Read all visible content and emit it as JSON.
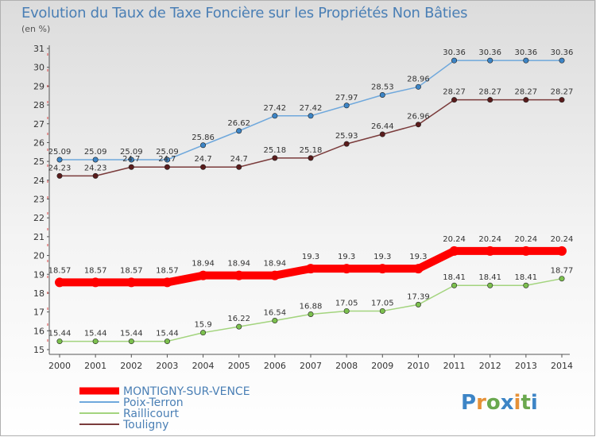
{
  "chart_data": {
    "type": "line",
    "title": "Evolution du Taux de Taxe Foncière sur les Propriétés Non Bâties",
    "unit_label": "(en %)",
    "x": [
      "2000",
      "2001",
      "2002",
      "2003",
      "2004",
      "2005",
      "2006",
      "2007",
      "2008",
      "2009",
      "2010",
      "2011",
      "2012",
      "2013",
      "2014"
    ],
    "ylim": [
      15,
      31
    ],
    "yticks": [
      15,
      16,
      17,
      18,
      19,
      20,
      21,
      22,
      23,
      24,
      25,
      26,
      27,
      28,
      29,
      30,
      31
    ],
    "series": [
      {
        "name": "MONTIGNY-SUR-VENCE",
        "color": "#ff0000",
        "point_color": "#ff0000",
        "width": 10,
        "bold": true,
        "values": [
          18.57,
          18.57,
          18.57,
          18.57,
          18.94,
          18.94,
          18.94,
          19.3,
          19.3,
          19.3,
          19.3,
          20.24,
          20.24,
          20.24,
          20.24
        ],
        "labels": [
          "18.57",
          "18.57",
          "18.57",
          "18.57",
          "18.94",
          "18.94",
          "18.94",
          "19.3",
          "19.3",
          "19.3",
          "19.3",
          "20.24",
          "20.24",
          "20.24",
          "20.24"
        ]
      },
      {
        "name": "Poix-Terron",
        "color": "#6fa8dc",
        "point_color": "#3d85c6",
        "width": 1.5,
        "bold": false,
        "values": [
          25.09,
          25.09,
          25.09,
          25.09,
          25.86,
          26.62,
          27.42,
          27.42,
          27.97,
          28.53,
          28.96,
          30.36,
          30.36,
          30.36,
          30.36
        ],
        "labels": [
          "25.09",
          "25.09",
          "25.09",
          "25.09",
          "25.86",
          "26.62",
          "27.42",
          "27.42",
          "27.97",
          "28.53",
          "28.96",
          "30.36",
          "30.36",
          "30.36",
          "30.36"
        ]
      },
      {
        "name": "Raillicourt",
        "color": "#a3d47e",
        "point_color": "#7cc04e",
        "width": 1.5,
        "bold": false,
        "values": [
          15.44,
          15.44,
          15.44,
          15.44,
          15.9,
          16.22,
          16.54,
          16.88,
          17.05,
          17.05,
          17.39,
          18.41,
          18.41,
          18.41,
          18.77
        ],
        "labels": [
          "15.44",
          "15.44",
          "15.44",
          "15.44",
          "15.9",
          "16.22",
          "16.54",
          "16.88",
          "17.05",
          "17.05",
          "17.39",
          "18.41",
          "18.41",
          "18.41",
          "18.77"
        ]
      },
      {
        "name": "Touligny",
        "color": "#7a3b3b",
        "point_color": "#5a1c1c",
        "width": 1.5,
        "bold": false,
        "values": [
          24.23,
          24.23,
          24.7,
          24.7,
          24.7,
          24.7,
          25.18,
          25.18,
          25.93,
          26.44,
          26.96,
          28.27,
          28.27,
          28.27,
          28.27
        ],
        "labels": [
          "24.23",
          "24.23",
          "24.7",
          "24.7",
          "24.7",
          "24.7",
          "25.18",
          "25.18",
          "25.93",
          "26.44",
          "26.96",
          "28.27",
          "28.27",
          "28.27",
          "28.27"
        ]
      }
    ],
    "legend_placement": "bottom-left",
    "grid": false
  },
  "logo": {
    "text": "Proxiti",
    "letters": [
      "P",
      "r",
      "o",
      "x",
      "i",
      "t",
      "i"
    ],
    "colors": [
      "#3d85c6",
      "#e69138",
      "#6aa84f",
      "#3d85c6",
      "#e69138",
      "#6aa84f",
      "#3d85c6"
    ]
  }
}
